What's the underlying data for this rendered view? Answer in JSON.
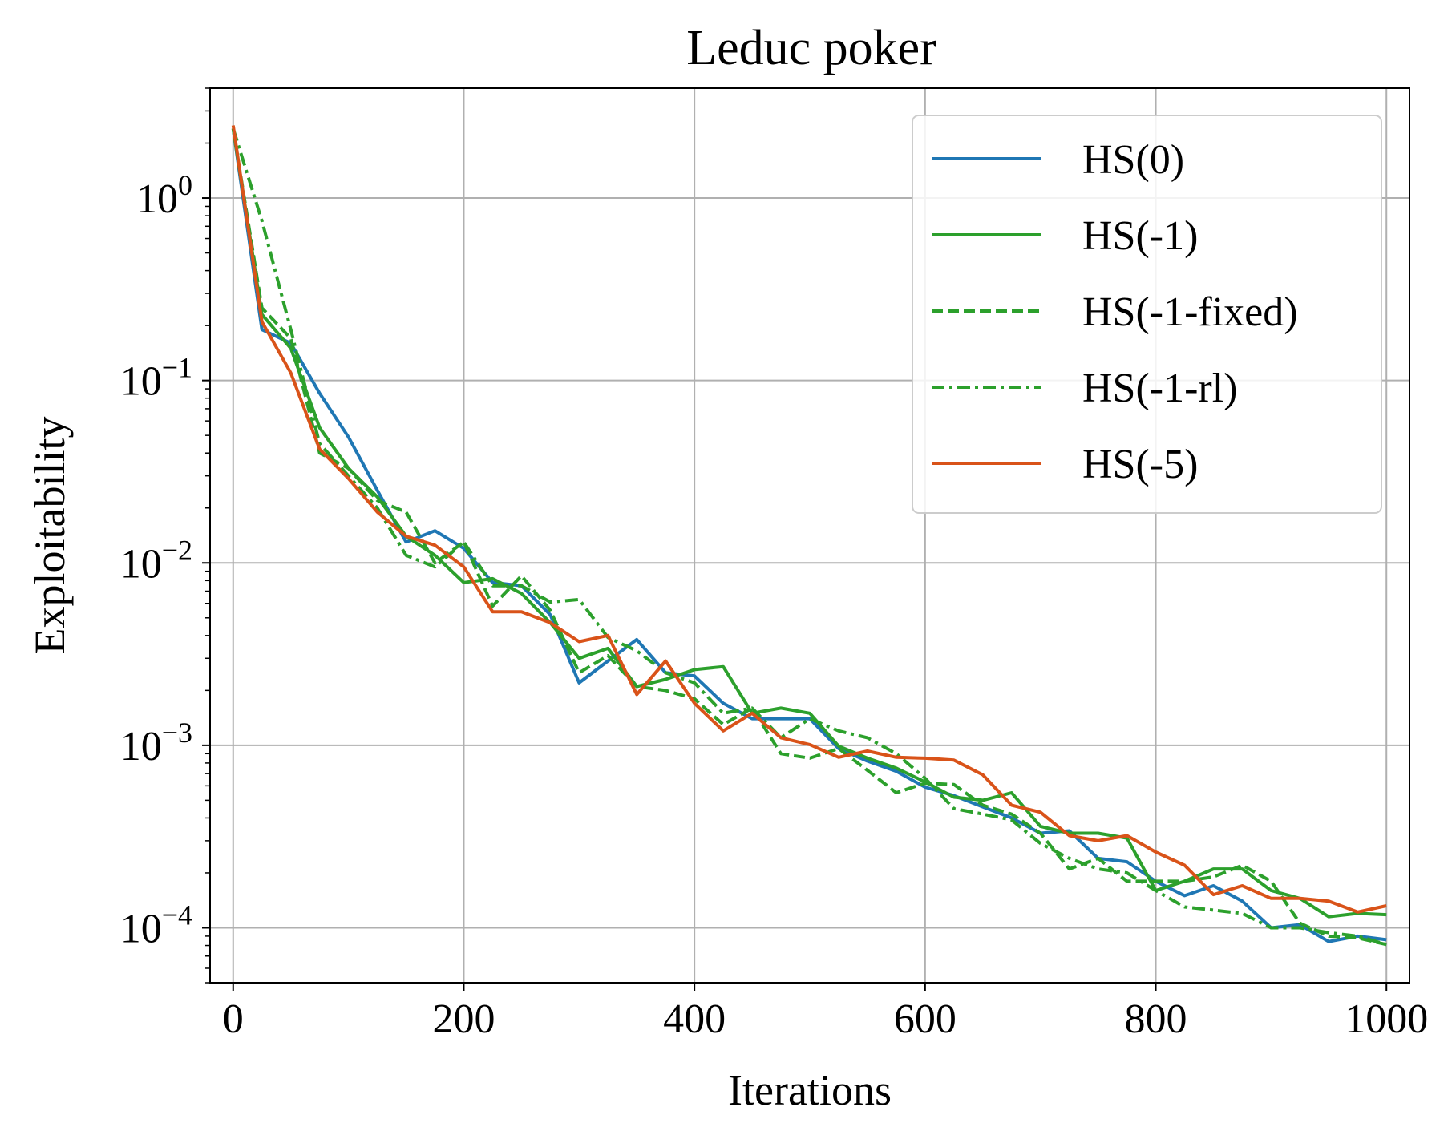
{
  "chart_data": {
    "type": "line",
    "title": "Leduc poker",
    "xlabel": "Iterations",
    "ylabel": "Exploitability",
    "xlim": [
      -20,
      1020
    ],
    "ylim": [
      5e-05,
      4
    ],
    "yscale": "log",
    "grid": true,
    "legend_position": "top-right",
    "x_ticks": [
      0,
      200,
      400,
      600,
      800,
      1000
    ],
    "x_tick_labels": [
      "0",
      "200",
      "400",
      "600",
      "800",
      "1000"
    ],
    "y_ticks": [
      1,
      0.1,
      0.01,
      0.001,
      0.0001
    ],
    "y_tick_labels": [
      {
        "base": "10",
        "exp": "0"
      },
      {
        "base": "10",
        "exp": "−1"
      },
      {
        "base": "10",
        "exp": "−2"
      },
      {
        "base": "10",
        "exp": "−3"
      },
      {
        "base": "10",
        "exp": "−4"
      }
    ],
    "x": [
      0,
      25,
      50,
      75,
      100,
      125,
      150,
      175,
      200,
      225,
      250,
      275,
      300,
      325,
      350,
      375,
      400,
      425,
      450,
      475,
      500,
      525,
      550,
      575,
      600,
      625,
      650,
      675,
      700,
      725,
      750,
      775,
      800,
      825,
      850,
      875,
      900,
      925,
      950,
      975,
      1000
    ],
    "series": [
      {
        "name": "HS(0)",
        "color": "#1f77b4",
        "dash": "solid",
        "values": [
          2.4,
          0.19,
          0.16,
          0.085,
          0.049,
          0.025,
          0.013,
          0.015,
          0.012,
          0.0078,
          0.0075,
          0.0052,
          0.0022,
          0.0029,
          0.0038,
          0.0025,
          0.0024,
          0.0017,
          0.0014,
          0.0014,
          0.0014,
          0.00096,
          0.00082,
          0.00072,
          0.00059,
          0.00053,
          0.00046,
          0.0004,
          0.00033,
          0.00034,
          0.00024,
          0.00023,
          0.00018,
          0.00015,
          0.00017,
          0.00014,
          0.0001,
          0.000104,
          8.4e-05,
          9e-05,
          8.6e-05
        ]
      },
      {
        "name": "HS(-1)",
        "color": "#2ca02c",
        "dash": "solid",
        "values": [
          2.4,
          0.23,
          0.15,
          0.055,
          0.033,
          0.023,
          0.014,
          0.011,
          0.0078,
          0.0082,
          0.0068,
          0.0047,
          0.003,
          0.0034,
          0.0021,
          0.0023,
          0.0026,
          0.0027,
          0.0015,
          0.0016,
          0.0015,
          0.00099,
          0.00085,
          0.00075,
          0.00063,
          0.00052,
          0.0005,
          0.00055,
          0.00036,
          0.00033,
          0.00033,
          0.00031,
          0.00016,
          0.00018,
          0.00021,
          0.00021,
          0.00016,
          0.000145,
          0.000115,
          0.00012,
          0.000118
        ]
      },
      {
        "name": "HS(-1-fixed)",
        "color": "#2ca02c",
        "dash": "dashed",
        "values": [
          2.4,
          0.25,
          0.17,
          0.04,
          0.033,
          0.022,
          0.019,
          0.01,
          0.013,
          0.0058,
          0.0085,
          0.0055,
          0.0025,
          0.0031,
          0.0021,
          0.002,
          0.0018,
          0.0013,
          0.0016,
          0.0009,
          0.00085,
          0.00096,
          0.00073,
          0.00055,
          0.00062,
          0.00061,
          0.00047,
          0.00042,
          0.00033,
          0.00021,
          0.00024,
          0.00018,
          0.00018,
          0.00018,
          0.00019,
          0.00022,
          0.00018,
          0.000106,
          9e-05,
          8.8e-05,
          8.1e-05
        ]
      },
      {
        "name": "HS(-1-rl)",
        "color": "#2ca02c",
        "dash": "dashdot",
        "values": [
          2.4,
          0.75,
          0.19,
          0.045,
          0.03,
          0.02,
          0.011,
          0.0095,
          0.013,
          0.0075,
          0.0075,
          0.0061,
          0.0063,
          0.0039,
          0.0033,
          0.0025,
          0.0022,
          0.0015,
          0.0016,
          0.0011,
          0.0014,
          0.0012,
          0.0011,
          0.0009,
          0.00066,
          0.00045,
          0.00042,
          0.00039,
          0.00029,
          0.00024,
          0.00021,
          0.0002,
          0.00016,
          0.00013,
          0.000125,
          0.00012,
          0.0001,
          0.0001,
          9.4e-05,
          9e-05,
          8.1e-05
        ]
      },
      {
        "name": "HS(-5)",
        "color": "#d95319",
        "dash": "solid",
        "values": [
          2.5,
          0.21,
          0.11,
          0.042,
          0.029,
          0.019,
          0.014,
          0.0125,
          0.0095,
          0.0054,
          0.0054,
          0.0047,
          0.0037,
          0.004,
          0.0019,
          0.0029,
          0.0017,
          0.0012,
          0.0015,
          0.0011,
          0.00101,
          0.00086,
          0.00093,
          0.00086,
          0.00085,
          0.00083,
          0.00069,
          0.00047,
          0.00043,
          0.00032,
          0.0003,
          0.00032,
          0.00026,
          0.00022,
          0.000152,
          0.00017,
          0.000145,
          0.000145,
          0.00014,
          0.000122,
          0.000132
        ]
      }
    ]
  }
}
